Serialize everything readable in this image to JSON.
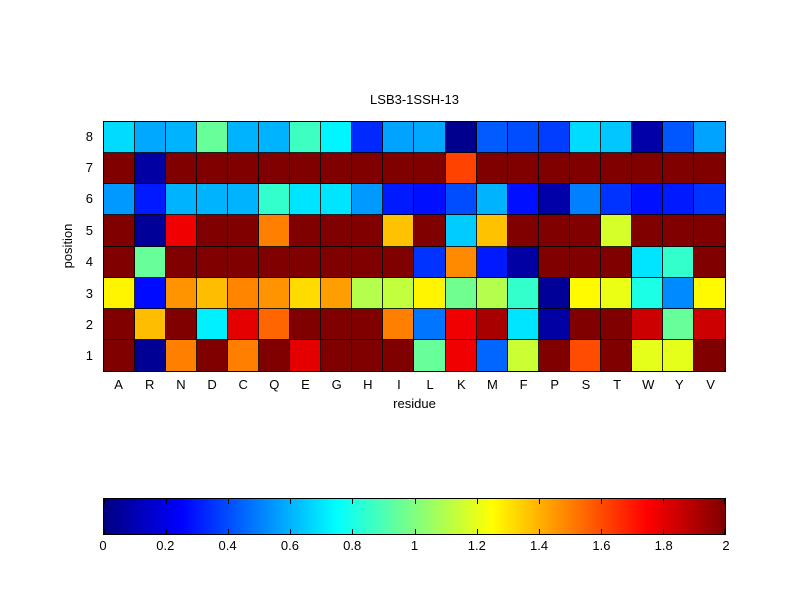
{
  "chart_data": {
    "type": "heatmap",
    "title": "LSB3-1SSH-13",
    "xlabel": "residue",
    "ylabel": "position",
    "x_categories": [
      "A",
      "R",
      "N",
      "D",
      "C",
      "Q",
      "E",
      "G",
      "H",
      "I",
      "L",
      "K",
      "M",
      "F",
      "P",
      "S",
      "T",
      "W",
      "Y",
      "V"
    ],
    "y_categories": [
      "8",
      "7",
      "6",
      "5",
      "4",
      "3",
      "2",
      "1"
    ],
    "value_range": [
      0,
      2
    ],
    "colormap": "jet",
    "grid": true,
    "values_rows_top_to_bottom": [
      [
        0.68,
        0.58,
        0.6,
        0.95,
        0.6,
        0.6,
        0.87,
        0.73,
        0.33,
        0.57,
        0.58,
        0.03,
        0.43,
        0.4,
        0.37,
        0.68,
        0.64,
        0.08,
        0.42,
        0.57
      ],
      [
        2.0,
        0.07,
        2.0,
        2.0,
        2.0,
        2.0,
        2.0,
        2.0,
        2.0,
        2.0,
        2.0,
        1.62,
        2.0,
        2.0,
        2.0,
        2.0,
        2.0,
        2.0,
        2.0,
        2.0
      ],
      [
        0.55,
        0.3,
        0.6,
        0.6,
        0.6,
        0.85,
        0.7,
        0.7,
        0.55,
        0.3,
        0.28,
        0.4,
        0.6,
        0.28,
        0.08,
        0.5,
        0.35,
        0.28,
        0.3,
        0.35
      ],
      [
        2.0,
        0.05,
        1.78,
        2.0,
        2.0,
        1.5,
        2.0,
        2.0,
        2.0,
        1.37,
        2.0,
        0.65,
        1.37,
        2.0,
        2.0,
        2.0,
        1.17,
        2.0,
        2.0,
        2.0
      ],
      [
        2.0,
        0.95,
        2.0,
        2.0,
        2.0,
        2.0,
        2.0,
        2.0,
        2.0,
        2.0,
        0.35,
        1.48,
        0.3,
        0.07,
        2.0,
        2.0,
        2.0,
        0.7,
        0.85,
        2.0
      ],
      [
        1.27,
        0.27,
        1.46,
        1.38,
        1.49,
        1.46,
        1.32,
        1.44,
        1.1,
        1.13,
        1.27,
        0.97,
        1.1,
        0.85,
        0.05,
        1.26,
        1.21,
        0.8,
        0.52,
        1.26
      ],
      [
        2.0,
        1.38,
        2.0,
        0.72,
        1.8,
        1.55,
        2.0,
        2.0,
        2.0,
        1.5,
        0.48,
        1.78,
        1.92,
        0.7,
        0.07,
        2.0,
        2.0,
        1.85,
        0.95,
        1.85
      ],
      [
        2.0,
        0.04,
        1.5,
        2.0,
        1.5,
        2.0,
        1.8,
        2.0,
        2.0,
        2.0,
        0.95,
        1.78,
        0.45,
        1.15,
        2.0,
        1.6,
        2.0,
        1.2,
        1.2,
        2.0
      ]
    ],
    "colorbar": {
      "orientation": "horizontal",
      "tick_values": [
        0,
        0.2,
        0.4,
        0.6,
        0.8,
        1,
        1.2,
        1.4,
        1.6,
        1.8,
        2
      ],
      "tick_labels": [
        "0",
        "0.2",
        "0.4",
        "0.6",
        "0.8",
        "1",
        "1.2",
        "1.4",
        "1.6",
        "1.8",
        "2"
      ]
    }
  }
}
